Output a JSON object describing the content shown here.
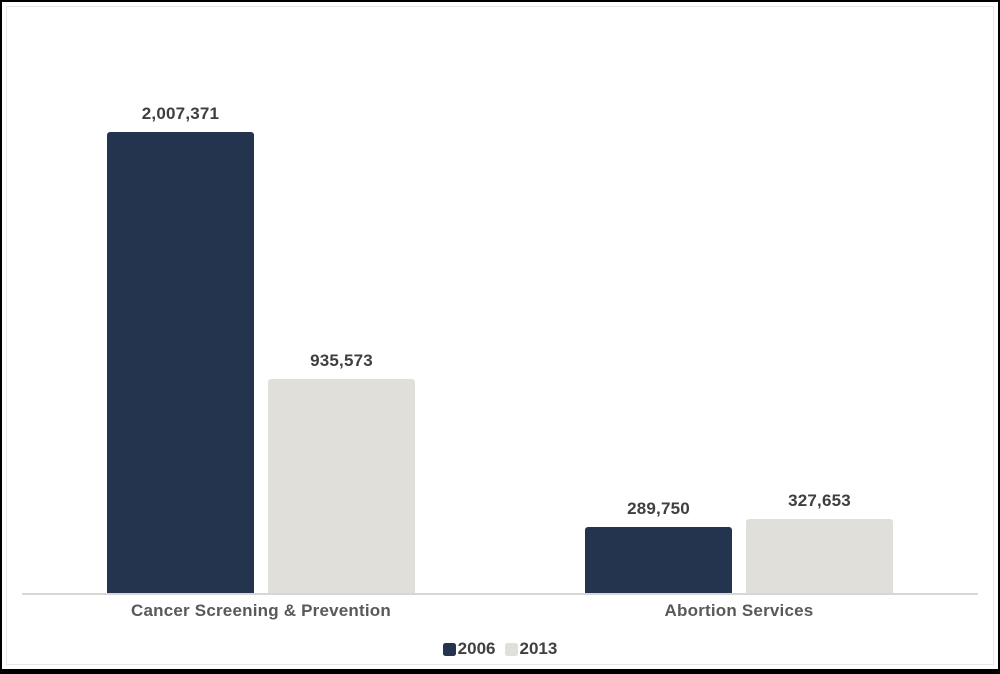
{
  "chart_data": {
    "type": "bar",
    "title": "",
    "xlabel": "",
    "ylabel": "",
    "grid": false,
    "value_axis_visible": false,
    "legend_position": "bottom",
    "categories": [
      "Cancer Screening & Prevention",
      "Abortion Services"
    ],
    "series": [
      {
        "name": "2006",
        "color": "#24344E",
        "values": [
          2007371,
          289750
        ],
        "labels": [
          "2,007,371",
          "289,750"
        ]
      },
      {
        "name": "2013",
        "color": "#E0DFD9",
        "values": [
          935573,
          327653
        ],
        "labels": [
          "935,573",
          "327,653"
        ]
      }
    ]
  },
  "colors": {
    "background": "#FFFFFF",
    "frame_border": "#000000",
    "axis_line": "#D6D6D6",
    "data_label_text": "#3F3F3F",
    "category_label_text": "#595959",
    "legend_text": "#404040",
    "series_2006": "#24344E",
    "series_2013": "#E0DFD9"
  }
}
